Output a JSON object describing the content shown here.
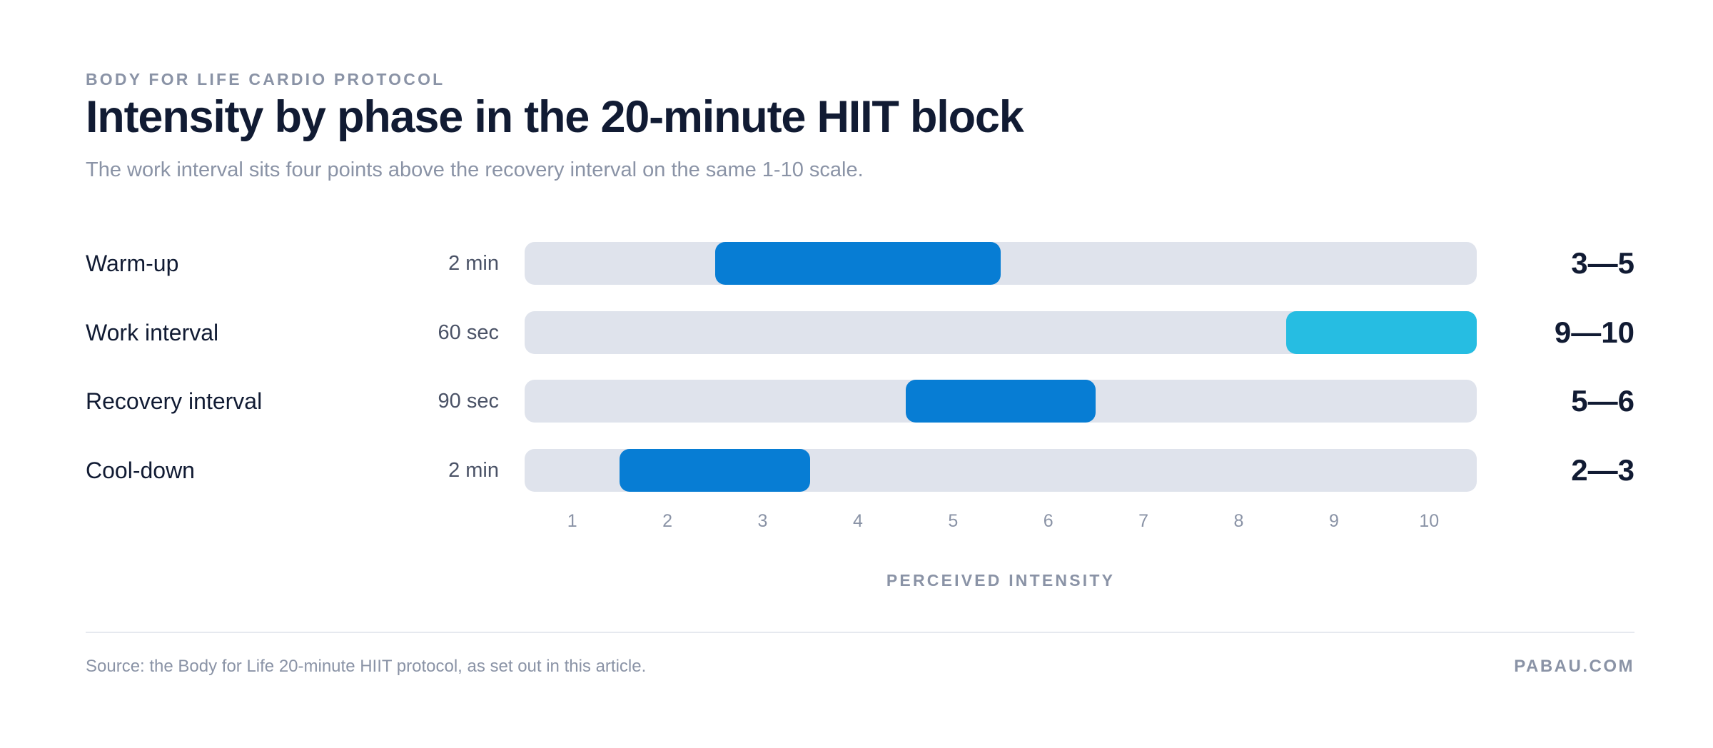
{
  "eyebrow": "BODY FOR LIFE CARDIO PROTOCOL",
  "title": "Intensity by phase in the 20-minute HIIT block",
  "subtitle": "The work interval sits four points above the recovery interval on the same 1-10 scale.",
  "footer": {
    "source": "Source: the Body for Life 20-minute HIIT protocol, as set out in this article.",
    "brand": "PABAU.COM"
  },
  "chart_data": {
    "type": "bar",
    "subtype": "range",
    "title": "Intensity by phase in the 20-minute HIIT block",
    "xlabel": "PERCEIVED INTENSITY",
    "xlim": [
      0.5,
      10.5
    ],
    "ticks": [
      1,
      2,
      3,
      4,
      5,
      6,
      7,
      8,
      9,
      10
    ],
    "grid": false,
    "rows": [
      {
        "label": "Warm-up",
        "duration": "2 min",
        "min": 3,
        "max": 5,
        "range_label": "3—5",
        "color": "#077dd4"
      },
      {
        "label": "Work interval",
        "duration": "60 sec",
        "min": 9,
        "max": 10,
        "range_label": "9—10",
        "color": "#26bde2"
      },
      {
        "label": "Recovery interval",
        "duration": "90 sec",
        "min": 5,
        "max": 6,
        "range_label": "5—6",
        "color": "#077dd4"
      },
      {
        "label": "Cool-down",
        "duration": "2 min",
        "min": 2,
        "max": 3,
        "range_label": "2—3",
        "color": "#077dd4"
      }
    ]
  }
}
